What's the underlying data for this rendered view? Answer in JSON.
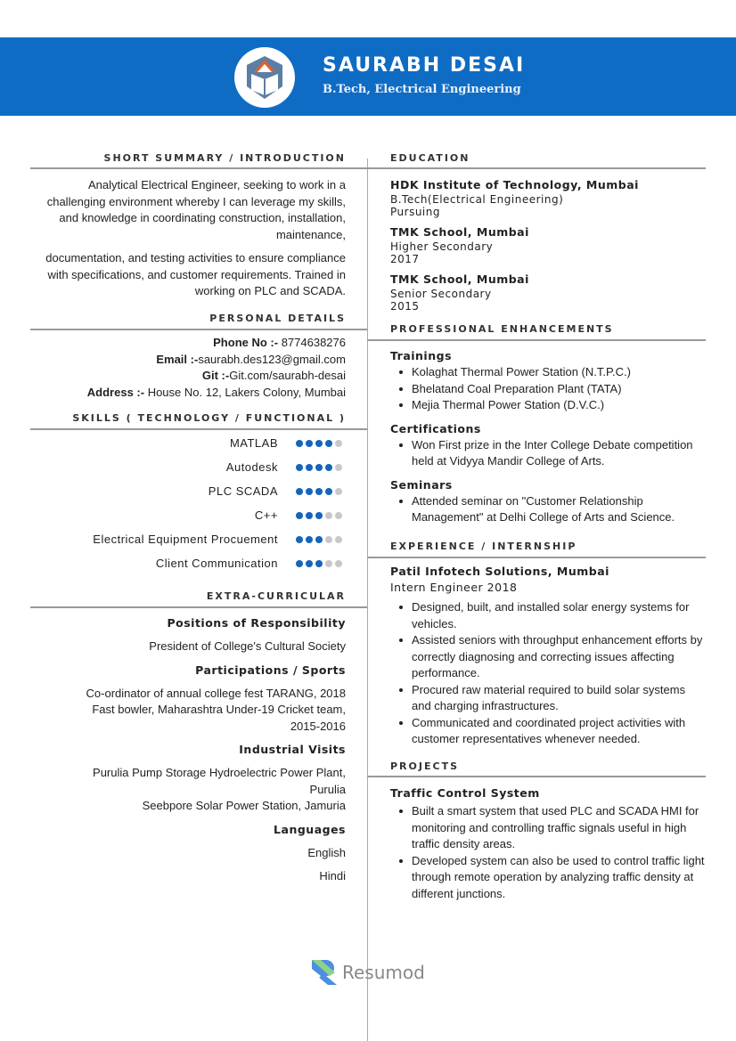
{
  "header": {
    "name": "SAURABH DESAI",
    "degree": "B.Tech, Electrical Engineering"
  },
  "colors": {
    "accent": "#0f6cc4",
    "dot_on": "#1565b8",
    "dot_off": "#c8c8c8"
  },
  "summary": {
    "title": "SHORT SUMMARY / INTRODUCTION",
    "p1": "Analytical Electrical Engineer, seeking to work in a challenging environment whereby I can leverage my skills, and knowledge in coordinating construction, installation, maintenance,",
    "p2": "documentation, and testing activities to ensure compliance with specifications, and customer requirements. Trained in working on PLC and SCADA."
  },
  "personal": {
    "title": "PERSONAL DETAILS",
    "items": [
      {
        "label": "Phone No :-",
        "value": " 8774638276"
      },
      {
        "label": "Email :-",
        "value": "saurabh.des123@gmail.com"
      },
      {
        "label": "Git :-",
        "value": "Git.com/saurabh-desai"
      },
      {
        "label": "Address :-",
        "value": " House No. 12, Lakers Colony, Mumbai"
      }
    ]
  },
  "skills": {
    "title": "SKILLS ( TECHNOLOGY / FUNCTIONAL )",
    "items": [
      {
        "name": "MATLAB",
        "level": 4,
        "max": 5
      },
      {
        "name": "Autodesk",
        "level": 4,
        "max": 5
      },
      {
        "name": "PLC SCADA",
        "level": 4,
        "max": 5
      },
      {
        "name": "C++",
        "level": 3,
        "max": 5
      },
      {
        "name": "Electrical Equipment Procuement",
        "level": 3,
        "max": 5
      },
      {
        "name": "Client Communication",
        "level": 3,
        "max": 5
      }
    ]
  },
  "extra": {
    "title": "EXTRA-CURRICULAR",
    "positions_title": "Positions of Responsibility",
    "positions": [
      "President of College's Cultural Society"
    ],
    "participations_title": "Participations / Sports",
    "participations": [
      "Co-ordinator of annual college fest TARANG, 2018",
      "Fast bowler, Maharashtra Under-19 Cricket team, 2015-2016"
    ],
    "visits_title": "Industrial Visits",
    "visits": [
      "Purulia Pump Storage Hydroelectric Power Plant, Purulia",
      "Seebpore Solar Power Station, Jamuria"
    ],
    "languages_title": "Languages",
    "languages": [
      "English",
      "Hindi"
    ]
  },
  "education": {
    "title": "EDUCATION",
    "items": [
      {
        "school": "HDK Institute of Technology, Mumbai",
        "line1": "B.Tech(Electrical Engineering)",
        "line2": "Pursuing"
      },
      {
        "school": "TMK School, Mumbai",
        "line1": "Higher Secondary",
        "line2": "2017"
      },
      {
        "school": "TMK School, Mumbai",
        "line1": "Senior Secondary",
        "line2": "2015"
      }
    ]
  },
  "enhancements": {
    "title": "PROFESSIONAL ENHANCEMENTS",
    "trainings_title": "Trainings",
    "trainings": [
      "Kolaghat Thermal Power Station (N.T.P.C.)",
      "Bhelatand Coal Preparation Plant (TATA)",
      "Mejia Thermal Power Station (D.V.C.)"
    ],
    "certifications_title": "Certifications",
    "certifications": [
      "Won First prize in the Inter College Debate competition held at Vidyya Mandir College of Arts."
    ],
    "seminars_title": "Seminars",
    "seminars": [
      "Attended seminar on \"Customer Relationship Management\" at Delhi College of Arts and Science."
    ]
  },
  "experience": {
    "title": "EXPERIENCE / INTERNSHIP",
    "company": "Patil Infotech Solutions, Mumbai",
    "role": "Intern Engineer 2018",
    "bullets": [
      "Designed, built, and installed solar energy systems for vehicles.",
      "Assisted seniors with throughput enhancement efforts by correctly diagnosing and correcting issues affecting performance.",
      "Procured raw material required to build solar systems and charging infrastructures.",
      "Communicated and coordinated project activities with customer representatives whenever needed."
    ]
  },
  "projects": {
    "title": "PROJECTS",
    "name": "Traffic Control System",
    "bullets": [
      "Built a smart system that used PLC and SCADA HMI for monitoring and controlling traffic signals useful in high traffic density areas.",
      "Developed system can also be used to control traffic light through remote operation by analyzing traffic density at different junctions."
    ]
  },
  "watermark": {
    "text": "Resumod"
  }
}
